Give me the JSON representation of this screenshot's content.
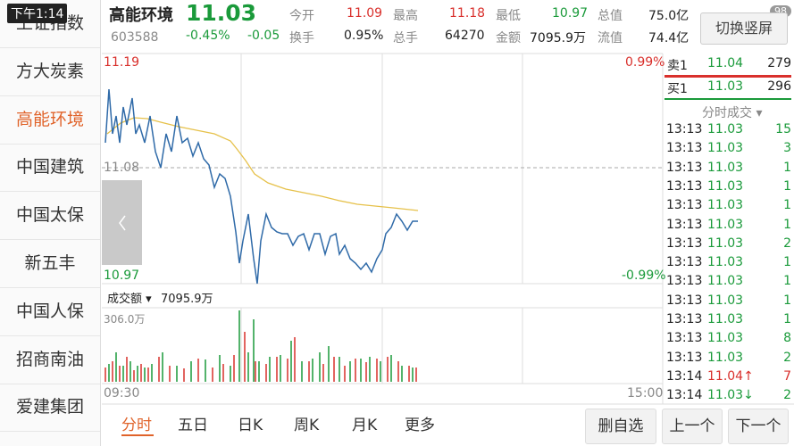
{
  "status": {
    "time": "下午1:14",
    "battery": "98"
  },
  "sidebar": [
    "上证指数",
    "方大炭素",
    "高能环境",
    "中国建筑",
    "中国太保",
    "新五丰",
    "中国人保",
    "招商南油",
    "爱建集团"
  ],
  "header": {
    "name": "高能环境",
    "price": "11.03",
    "code": "603588",
    "change_pct": "-0.45%",
    "change": "-0.05",
    "row1": [
      [
        "今开",
        "11.09"
      ],
      [
        "最高",
        "11.18"
      ],
      [
        "最低",
        "10.97"
      ],
      [
        "总值",
        "75.0亿"
      ]
    ],
    "row2": [
      [
        "换手",
        "0.95%"
      ],
      [
        "总手",
        "64270"
      ],
      [
        "金额",
        "7095.9万"
      ],
      [
        "流值",
        "74.4亿"
      ]
    ],
    "switch_button": "切换竖屏"
  },
  "chart": {
    "high": "11.19",
    "high_pct": "0.99%",
    "mid": "11.08",
    "low": "10.97",
    "low_pct": "-0.99%",
    "volume_label": "成交额",
    "volume_value": "7095.9万",
    "volume_max": "306.0万",
    "start_time": "09:30",
    "end_time": "15:00"
  },
  "order_book": [
    {
      "label": "卖1",
      "price": "11.04",
      "volume": "279"
    },
    {
      "label": "买1",
      "price": "11.03",
      "volume": "296"
    }
  ],
  "trades_title": "分时成交",
  "trades": [
    [
      "13:13",
      "11.03",
      "15"
    ],
    [
      "13:13",
      "11.03",
      "3"
    ],
    [
      "13:13",
      "11.03",
      "1"
    ],
    [
      "13:13",
      "11.03",
      "1"
    ],
    [
      "13:13",
      "11.03",
      "1"
    ],
    [
      "13:13",
      "11.03",
      "1"
    ],
    [
      "13:13",
      "11.03",
      "2"
    ],
    [
      "13:13",
      "11.03",
      "1"
    ],
    [
      "13:13",
      "11.03",
      "1"
    ],
    [
      "13:13",
      "11.03",
      "1"
    ],
    [
      "13:13",
      "11.03",
      "1"
    ],
    [
      "13:13",
      "11.03",
      "8"
    ],
    [
      "13:13",
      "11.03",
      "2"
    ],
    [
      "13:14",
      "11.04↑",
      "7"
    ],
    [
      "13:14",
      "11.03↓",
      "2"
    ]
  ],
  "tabs": [
    "分时",
    "五日",
    "日K",
    "周K",
    "月K",
    "更多"
  ],
  "buttons": [
    "删自选",
    "上一个",
    "下一个"
  ]
}
